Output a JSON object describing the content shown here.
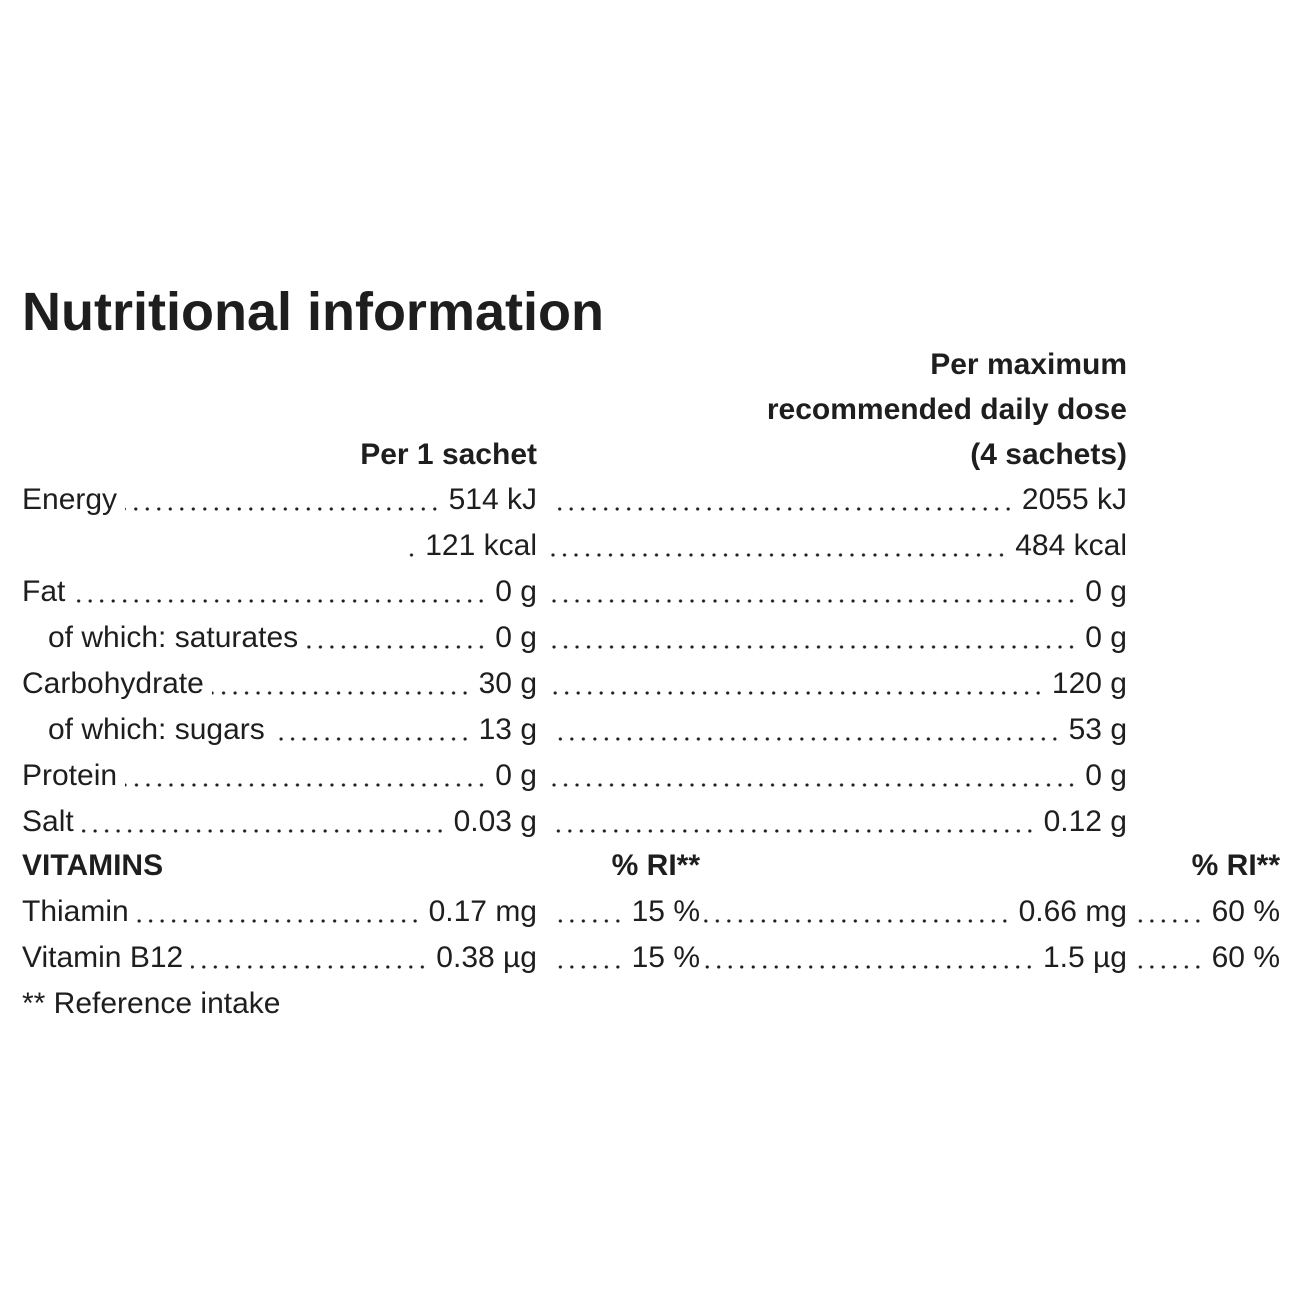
{
  "title": "Nutritional information",
  "headers": {
    "per_sachet": "Per 1 sachet",
    "per_max": [
      "Per maximum",
      "recommended daily dose",
      "(4 sachets)"
    ]
  },
  "nutrients": [
    {
      "label": "Energy",
      "per_sachet": [
        "514 kJ",
        "121 kcal"
      ],
      "per_max": [
        "2055 kJ",
        "484 kcal"
      ]
    },
    {
      "label": "Fat",
      "per_sachet": [
        "0 g"
      ],
      "per_max": [
        "0 g"
      ],
      "sub": {
        "label": "of which: saturates",
        "per_sachet": "0 g",
        "per_max": "0 g"
      }
    },
    {
      "label": "Carbohydrate",
      "per_sachet": [
        "30 g"
      ],
      "per_max": [
        "120 g"
      ],
      "sub": {
        "label": "of which: sugars",
        "per_sachet": "13 g",
        "per_max": "53 g"
      }
    },
    {
      "label": "Protein",
      "per_sachet": [
        "0 g"
      ],
      "per_max": [
        "0 g"
      ]
    },
    {
      "label": "Salt",
      "per_sachet": [
        "0.03 g"
      ],
      "per_max": [
        "0.12 g"
      ]
    }
  ],
  "vitamins": {
    "title": "VITAMINS",
    "ri_header": "% RI**",
    "rows": [
      {
        "label": "Thiamin",
        "per_sachet": "0.17 mg",
        "ri_sachet": "15 %",
        "per_max": "0.66 mg",
        "ri_max": "60 %"
      },
      {
        "label": "Vitamin B12",
        "per_sachet": "0.38 µg",
        "ri_sachet": "15 %",
        "per_max": "1.5 µg",
        "ri_max": "60 %"
      }
    ]
  },
  "footnote": "** Reference intake"
}
